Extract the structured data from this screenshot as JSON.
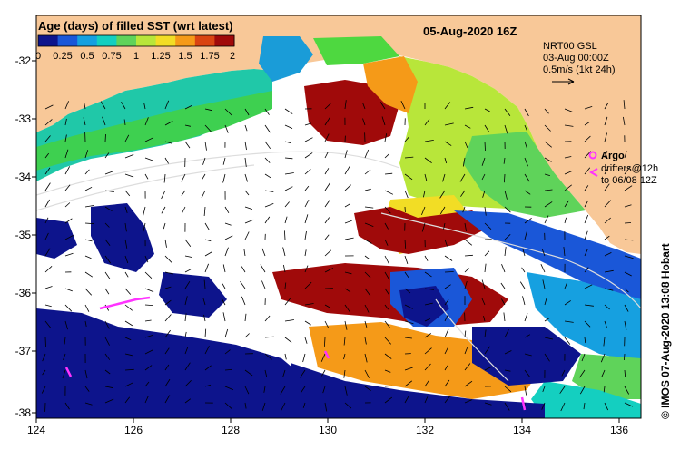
{
  "map": {
    "title": "Age (days) of filled SST (wrt latest)",
    "date": "05-Aug-2020 16Z",
    "legend_ticks": [
      "0",
      "0.25",
      "0.5",
      "0.75",
      "1",
      "1.25",
      "1.5",
      "1.75",
      "2"
    ],
    "legend_colors": [
      "#0d148c",
      "#1a57d8",
      "#16a0e0",
      "#14cfc0",
      "#5fd35a",
      "#b8e63a",
      "#f2dd25",
      "#f59a18",
      "#d94412",
      "#a00a0a"
    ],
    "gsl": {
      "line1": "NRT00 GSL",
      "line2": "03-Aug 00:00Z",
      "line3": "0.5m/s (1kt 24h)"
    },
    "argo_label": "Argo",
    "drifters_line1": "drifters@12h",
    "drifters_line2": "to 06/08 12Z",
    "credit": "© IMOS 07-Aug-2020 13:08 Hobart",
    "x_ticks": [
      "124",
      "126",
      "128",
      "130",
      "132",
      "134",
      "136"
    ],
    "y_ticks": [
      "-32",
      "-33",
      "-34",
      "-35",
      "-36",
      "-37",
      "-38"
    ],
    "colors": {
      "land": "#f8c898",
      "ocean_empty": "#ffffff",
      "old_data": "#0d148c",
      "argo": "#ff33ff"
    }
  }
}
